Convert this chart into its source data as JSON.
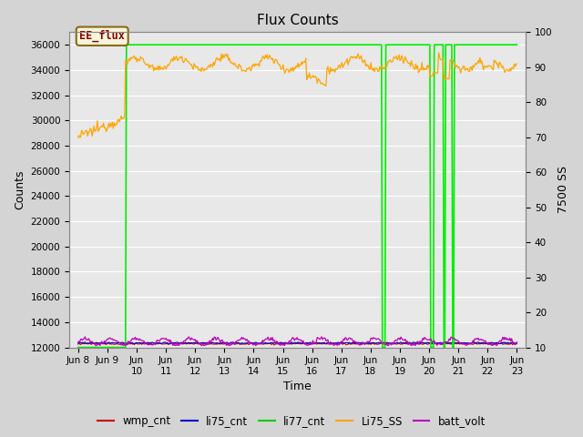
{
  "title": "Flux Counts",
  "xlabel": "Time",
  "ylabel_left": "Counts",
  "ylabel_right": "7500 SS",
  "ylim_left": [
    12000,
    37000
  ],
  "ylim_right": [
    10,
    100
  ],
  "fig_bg_color": "#d4d4d4",
  "plot_bg_color": "#e8e8e8",
  "annotation_text": "EE_flux",
  "annotation_color": "#8b0000",
  "annotation_bg": "#f5f5dc",
  "annotation_edge": "#8b6914",
  "legend_entries": [
    "wmp_cnt",
    "li75_cnt",
    "li77_cnt",
    "Li75_SS",
    "batt_volt"
  ],
  "legend_colors": [
    "#cc0000",
    "#0000cc",
    "#00cc00",
    "#ffa500",
    "#bb00bb"
  ],
  "line_colors": {
    "li77_cnt": "#00ee00",
    "Li75_SS": "#ffa500",
    "batt_volt": "#bb00bb",
    "wmp_cnt": "#cc0000",
    "li75_cnt": "#0000cc"
  },
  "x_tick_labels": [
    "Jun 8",
    "Jun 9",
    "Jun\n10",
    "Jun\n11",
    "Jun\n12",
    "Jun\n13",
    "Jun\n14",
    "Jun\n15",
    "Jun\n16",
    "Jun\n17",
    "Jun\n18",
    "Jun\n19",
    "Jun\n20",
    "Jun\n21",
    "Jun\n22",
    "Jun\n23"
  ],
  "x_tick_positions": [
    0,
    1,
    2,
    3,
    4,
    5,
    6,
    7,
    8,
    9,
    10,
    11,
    12,
    13,
    14,
    15
  ],
  "yticks_left": [
    12000,
    14000,
    16000,
    18000,
    20000,
    22000,
    24000,
    26000,
    28000,
    30000,
    32000,
    34000,
    36000
  ],
  "yticks_right": [
    10,
    20,
    30,
    40,
    50,
    60,
    70,
    80,
    90,
    100
  ],
  "grid_color": "#ffffff",
  "n_points": 500
}
